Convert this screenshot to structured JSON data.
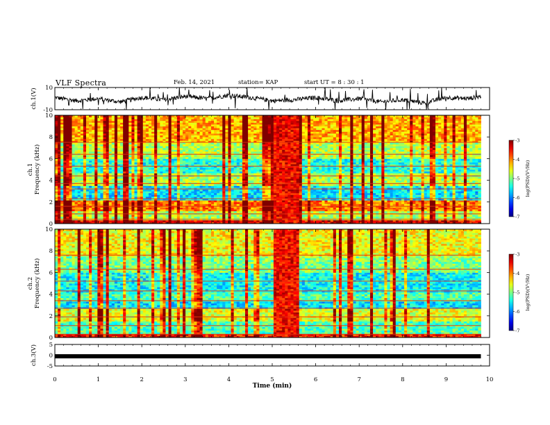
{
  "header": {
    "title": "VLF Spectra",
    "date": "Feb. 14, 2021",
    "station": "station= KAP",
    "start": "start  UT =   8  : 30 : 1"
  },
  "chart_data": [
    {
      "type": "line",
      "panel": "ch1-waveform",
      "ylabel": "ch.1(V)",
      "ylim": [
        -10,
        10
      ],
      "yticks": [
        "10",
        "-10"
      ],
      "xlim": [
        0,
        10
      ],
      "series": [
        {
          "x": [
            0,
            0.5,
            1,
            1.5,
            2,
            2.5,
            3,
            3.5,
            4,
            4.5,
            5,
            5.5,
            6,
            6.5,
            7,
            7.5,
            8,
            8.5,
            9,
            9.5,
            9.8
          ],
          "values": [
            1,
            -2,
            0,
            -3,
            1,
            -1,
            2,
            0,
            3,
            1,
            -2,
            -1,
            1,
            -2,
            0,
            -3,
            -1,
            -4,
            1,
            0,
            2
          ]
        }
      ]
    },
    {
      "type": "heatmap",
      "panel": "ch1-spectrogram",
      "ylabel": "ch.1\nFrequency (kHz)",
      "ylim": [
        0,
        10
      ],
      "yticks": [
        "0",
        "2",
        "4",
        "6",
        "8",
        "10"
      ],
      "xlim": [
        0,
        10
      ],
      "colorbar": {
        "label": "log(PSD)(V²/Hz)",
        "range": [
          -7,
          -3
        ],
        "ticks": [
          "-3",
          "-4",
          "-5",
          "-6",
          "-7"
        ]
      }
    },
    {
      "type": "heatmap",
      "panel": "ch2-spectrogram",
      "ylabel": "ch.2\nFrequency (kHz)",
      "ylim": [
        0,
        10
      ],
      "yticks": [
        "0",
        "2",
        "4",
        "6",
        "8",
        "10"
      ],
      "xlim": [
        0,
        10
      ],
      "colorbar": {
        "label": "log(PSD)(V²/Hz)",
        "range": [
          -7,
          -3
        ],
        "ticks": [
          "-3",
          "-4",
          "-5",
          "-6",
          "-7"
        ]
      }
    },
    {
      "type": "line",
      "panel": "ch3-waveform",
      "ylabel": "ch.3(V)",
      "ylim": [
        -5,
        5
      ],
      "yticks": [
        "5",
        "0",
        "-5"
      ],
      "xlim": [
        0,
        10
      ],
      "xlabel": "Time (min)",
      "xticks": [
        "0",
        "1",
        "2",
        "3",
        "4",
        "5",
        "6",
        "7",
        "8",
        "9",
        "10"
      ],
      "series": [
        {
          "x": [
            0,
            9.8
          ],
          "values": [
            -0.5,
            -0.5
          ]
        }
      ]
    }
  ]
}
